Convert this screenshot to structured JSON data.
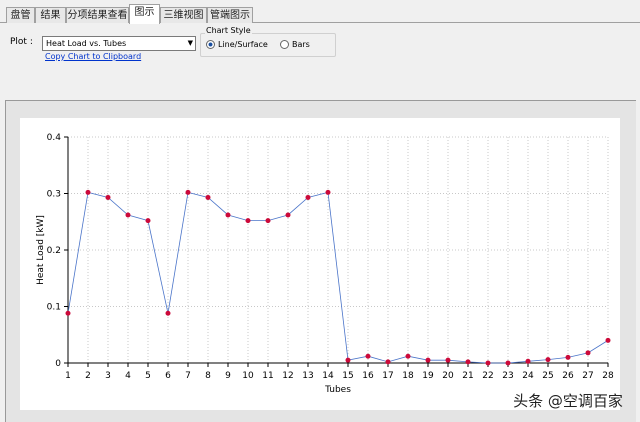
{
  "tabs": [
    "盘管",
    "结果",
    "分项结果查看",
    "图示",
    "三维视图",
    "管端图示"
  ],
  "active_tab": 3,
  "plot_label": "Plot :",
  "plot_select": "Heat Load vs. Tubes",
  "copy_link": "Copy Chart to Clipboard",
  "chart_style": {
    "title": "Chart Style",
    "options": [
      "Line/Surface",
      "Bars"
    ],
    "selected": 0
  },
  "watermark": "头条 @空调百家",
  "chart_data": {
    "type": "line",
    "x_label": "Tubes",
    "y_label": "Heat Load [kW]",
    "x": [
      1,
      2,
      3,
      4,
      5,
      6,
      7,
      8,
      9,
      10,
      11,
      12,
      13,
      14,
      15,
      16,
      17,
      18,
      19,
      20,
      21,
      22,
      23,
      24,
      25,
      26,
      27,
      28
    ],
    "series": [
      {
        "name": "Heat Load",
        "color": "#4a74c9",
        "marker_color": "#cc0a3a",
        "values": [
          0.088,
          0.302,
          0.293,
          0.262,
          0.252,
          0.088,
          0.302,
          0.293,
          0.262,
          0.252,
          0.252,
          0.262,
          0.293,
          0.302,
          0.005,
          0.012,
          0.002,
          0.012,
          0.005,
          0.005,
          0.002,
          0.0,
          0.0,
          0.003,
          0.006,
          0.01,
          0.018,
          0.04
        ]
      }
    ],
    "xlim": [
      1,
      28
    ],
    "xticks": [
      1,
      2,
      3,
      4,
      5,
      6,
      7,
      8,
      9,
      10,
      11,
      12,
      13,
      14,
      15,
      16,
      17,
      18,
      19,
      20,
      21,
      22,
      23,
      24,
      25,
      26,
      27,
      28
    ],
    "ylim": [
      0,
      0.4
    ],
    "yticks": [
      0,
      0.1,
      0.2,
      0.3,
      0.4
    ],
    "grid": true
  }
}
